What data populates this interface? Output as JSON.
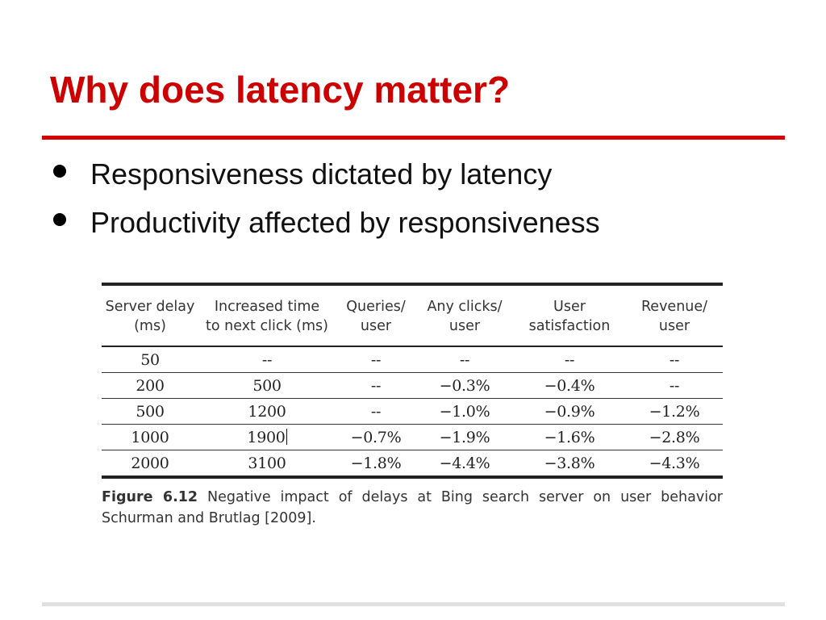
{
  "slide": {
    "title": "Why does latency matter?",
    "bullets": [
      "Responsiveness dictated by latency",
      "Productivity affected by responsiveness"
    ]
  },
  "table": {
    "headers": [
      [
        "Server delay",
        "(ms)"
      ],
      [
        "Increased time",
        "to next click (ms)"
      ],
      [
        "Queries/",
        "user"
      ],
      [
        "Any clicks/",
        "user"
      ],
      [
        "User",
        "satisfaction"
      ],
      [
        "Revenue/",
        "user"
      ]
    ],
    "rows": [
      [
        "50",
        "--",
        "--",
        "--",
        "--",
        "--"
      ],
      [
        "200",
        "500",
        "--",
        "−0.3%",
        "−0.4%",
        "--"
      ],
      [
        "500",
        "1200",
        "--",
        "−1.0%",
        "−0.9%",
        "−1.2%"
      ],
      [
        "1000",
        "1900",
        "−0.7%",
        "−1.9%",
        "−1.6%",
        "−2.8%"
      ],
      [
        "2000",
        "3100",
        "−1.8%",
        "−4.4%",
        "−3.8%",
        "−4.3%"
      ]
    ]
  },
  "caption": {
    "label": "Figure 6.12",
    "text": "Negative impact of delays at Bing search server on user behavior Schurman and Brutlag [2009]."
  },
  "colors": {
    "title": "#cc0000",
    "rule": "#d60000"
  }
}
